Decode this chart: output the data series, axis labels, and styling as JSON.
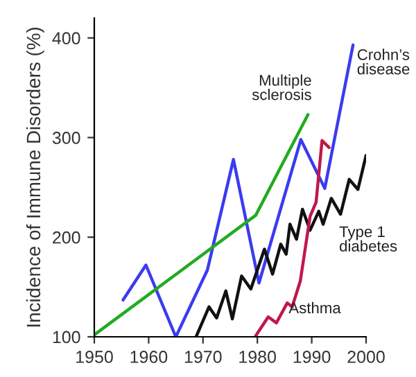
{
  "chart_data": {
    "type": "line",
    "ylabel": "Incidence of Immune Disorders (%)",
    "xlim": [
      1950,
      2000
    ],
    "ylim": [
      100,
      420
    ],
    "xticks": [
      1950,
      1960,
      1970,
      1980,
      1990,
      2000
    ],
    "yticks": [
      100,
      200,
      300,
      400
    ],
    "grid": false,
    "legend": false,
    "marker": "none",
    "line_style": "solid",
    "series": [
      {
        "name": "Crohn’s\ndisease",
        "color": "#3b3bf0",
        "x": [
          1955.3,
          1959.5,
          1965,
          1970.8,
          1975.6,
          1980.3,
          1988,
          1992.4,
          1997.6
        ],
        "values": [
          137,
          172,
          100,
          167,
          278,
          154,
          298,
          249,
          393
        ]
      },
      {
        "name": "Multiple\nsclerosis",
        "color": "#22aa22",
        "x": [
          1950,
          1979.7,
          1989.3
        ],
        "values": [
          102,
          222,
          323
        ]
      },
      {
        "name": "Type 1\ndiabetes",
        "color": "#111111",
        "x": [
          1968.8,
          1971.1,
          1972.5,
          1974.2,
          1975.4,
          1977.1,
          1978.8,
          1981.3,
          1982.8,
          1984.3,
          1985.3,
          1986,
          1987.2,
          1988.3,
          1989.7,
          1991.3,
          1992.1,
          1993.6,
          1995.3,
          1996.9,
          1998.5,
          2000
        ],
        "values": [
          101,
          130,
          119,
          146,
          118,
          161,
          148,
          188,
          163,
          193,
          183,
          213,
          198,
          228,
          207,
          226,
          213,
          239,
          223,
          258,
          248,
          282
        ]
      },
      {
        "name": "Asthma",
        "color": "#c0184a",
        "x": [
          1979.7,
          1982,
          1983.5,
          1985.5,
          1986.4,
          1987.9,
          1989.7,
          1990.8,
          1991.9,
          1993.2
        ],
        "values": [
          101,
          120,
          114,
          134,
          130,
          156,
          221,
          235,
          297,
          290
        ]
      }
    ]
  }
}
